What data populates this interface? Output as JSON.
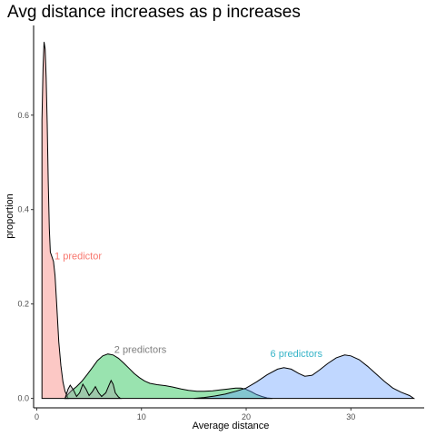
{
  "chart_data": {
    "type": "area",
    "title": "Avg distance increases as p increases",
    "xlabel": "Average distance",
    "ylabel": "proportion",
    "xlim": [
      -0.3,
      37
    ],
    "ylim": [
      -0.02,
      0.79
    ],
    "x_ticks": [
      0,
      10,
      20,
      30
    ],
    "y_ticks": [
      0.0,
      0.2,
      0.4,
      0.6
    ],
    "y_tick_labels": [
      "0.0",
      "0.2",
      "0.4",
      "0.6"
    ],
    "grid": false,
    "legend": "none",
    "series": [
      {
        "fill": "#f8766d",
        "points": [
          [
            0.5,
            0.59
          ],
          [
            0.6,
            0.7
          ],
          [
            0.7,
            0.755
          ],
          [
            0.8,
            0.74
          ],
          [
            0.9,
            0.68
          ],
          [
            1.0,
            0.58
          ],
          [
            1.1,
            0.46
          ],
          [
            1.2,
            0.36
          ],
          [
            1.3,
            0.31
          ],
          [
            1.45,
            0.3
          ],
          [
            1.6,
            0.29
          ],
          [
            1.75,
            0.26
          ],
          [
            1.9,
            0.2
          ],
          [
            2.1,
            0.12
          ],
          [
            2.3,
            0.07
          ],
          [
            2.5,
            0.035
          ],
          [
            2.7,
            0.015
          ],
          [
            2.9,
            0.005
          ],
          [
            3.0,
            0.0
          ]
        ]
      },
      {
        "fill": "#00ba38",
        "points": [
          [
            2.7,
            0.0
          ],
          [
            3.0,
            0.009
          ],
          [
            3.3,
            0.016
          ],
          [
            3.8,
            0.025
          ],
          [
            4.3,
            0.036
          ],
          [
            4.8,
            0.05
          ],
          [
            5.3,
            0.065
          ],
          [
            5.8,
            0.08
          ],
          [
            6.3,
            0.09
          ],
          [
            6.8,
            0.094
          ],
          [
            7.3,
            0.092
          ],
          [
            7.8,
            0.085
          ],
          [
            8.3,
            0.075
          ],
          [
            8.8,
            0.064
          ],
          [
            9.3,
            0.053
          ],
          [
            9.8,
            0.044
          ],
          [
            10.3,
            0.037
          ],
          [
            10.8,
            0.032
          ],
          [
            11.5,
            0.029
          ],
          [
            12.3,
            0.027
          ],
          [
            13.0,
            0.024
          ],
          [
            13.8,
            0.02
          ],
          [
            14.5,
            0.017
          ],
          [
            15.3,
            0.015
          ],
          [
            16.0,
            0.015
          ],
          [
            16.8,
            0.016
          ],
          [
            17.5,
            0.018
          ],
          [
            18.3,
            0.02
          ],
          [
            19.0,
            0.022
          ],
          [
            19.5,
            0.022
          ],
          [
            20.0,
            0.019
          ],
          [
            20.5,
            0.014
          ],
          [
            21.0,
            0.008
          ],
          [
            21.5,
            0.004
          ],
          [
            22.0,
            0.001
          ],
          [
            22.5,
            0.0
          ]
        ]
      },
      {
        "fill": "#619cff",
        "points": [
          [
            15.0,
            0.0
          ],
          [
            16.0,
            0.002
          ],
          [
            17.0,
            0.005
          ],
          [
            18.0,
            0.009
          ],
          [
            19.0,
            0.015
          ],
          [
            20.0,
            0.022
          ],
          [
            21.0,
            0.035
          ],
          [
            22.0,
            0.05
          ],
          [
            23.0,
            0.062
          ],
          [
            23.6,
            0.065
          ],
          [
            24.3,
            0.062
          ],
          [
            25.0,
            0.053
          ],
          [
            25.6,
            0.047
          ],
          [
            26.3,
            0.049
          ],
          [
            27.0,
            0.06
          ],
          [
            27.8,
            0.074
          ],
          [
            28.6,
            0.086
          ],
          [
            29.4,
            0.092
          ],
          [
            30.0,
            0.09
          ],
          [
            30.8,
            0.082
          ],
          [
            31.6,
            0.068
          ],
          [
            32.4,
            0.052
          ],
          [
            33.2,
            0.036
          ],
          [
            34.0,
            0.022
          ],
          [
            34.8,
            0.013
          ],
          [
            35.6,
            0.006
          ],
          [
            36.0,
            0.0
          ]
        ]
      },
      {
        "fill": "#a3a3a3",
        "points": [
          [
            2.7,
            0.0
          ],
          [
            3.0,
            0.02
          ],
          [
            3.2,
            0.028
          ],
          [
            3.5,
            0.018
          ],
          [
            3.8,
            0.004
          ],
          [
            4.1,
            0.012
          ],
          [
            4.4,
            0.03
          ],
          [
            4.7,
            0.02
          ],
          [
            5.0,
            0.006
          ],
          [
            5.3,
            0.014
          ],
          [
            5.6,
            0.025
          ],
          [
            5.9,
            0.012
          ],
          [
            6.2,
            0.004
          ],
          [
            6.6,
            0.012
          ],
          [
            6.9,
            0.028
          ],
          [
            7.1,
            0.038
          ],
          [
            7.3,
            0.03
          ],
          [
            7.5,
            0.012
          ],
          [
            7.8,
            0.003
          ],
          [
            8.0,
            0.0
          ]
        ]
      }
    ],
    "annotations": [
      {
        "text": "1 predictor",
        "x": 1.7,
        "y": 0.295,
        "color": "#f8766d"
      },
      {
        "text": "2 predictors",
        "x": 7.4,
        "y": 0.096,
        "color": "#7f7f7f"
      },
      {
        "text": "6 predictors",
        "x": 22.3,
        "y": 0.088,
        "color": "#36b4c8"
      }
    ]
  }
}
